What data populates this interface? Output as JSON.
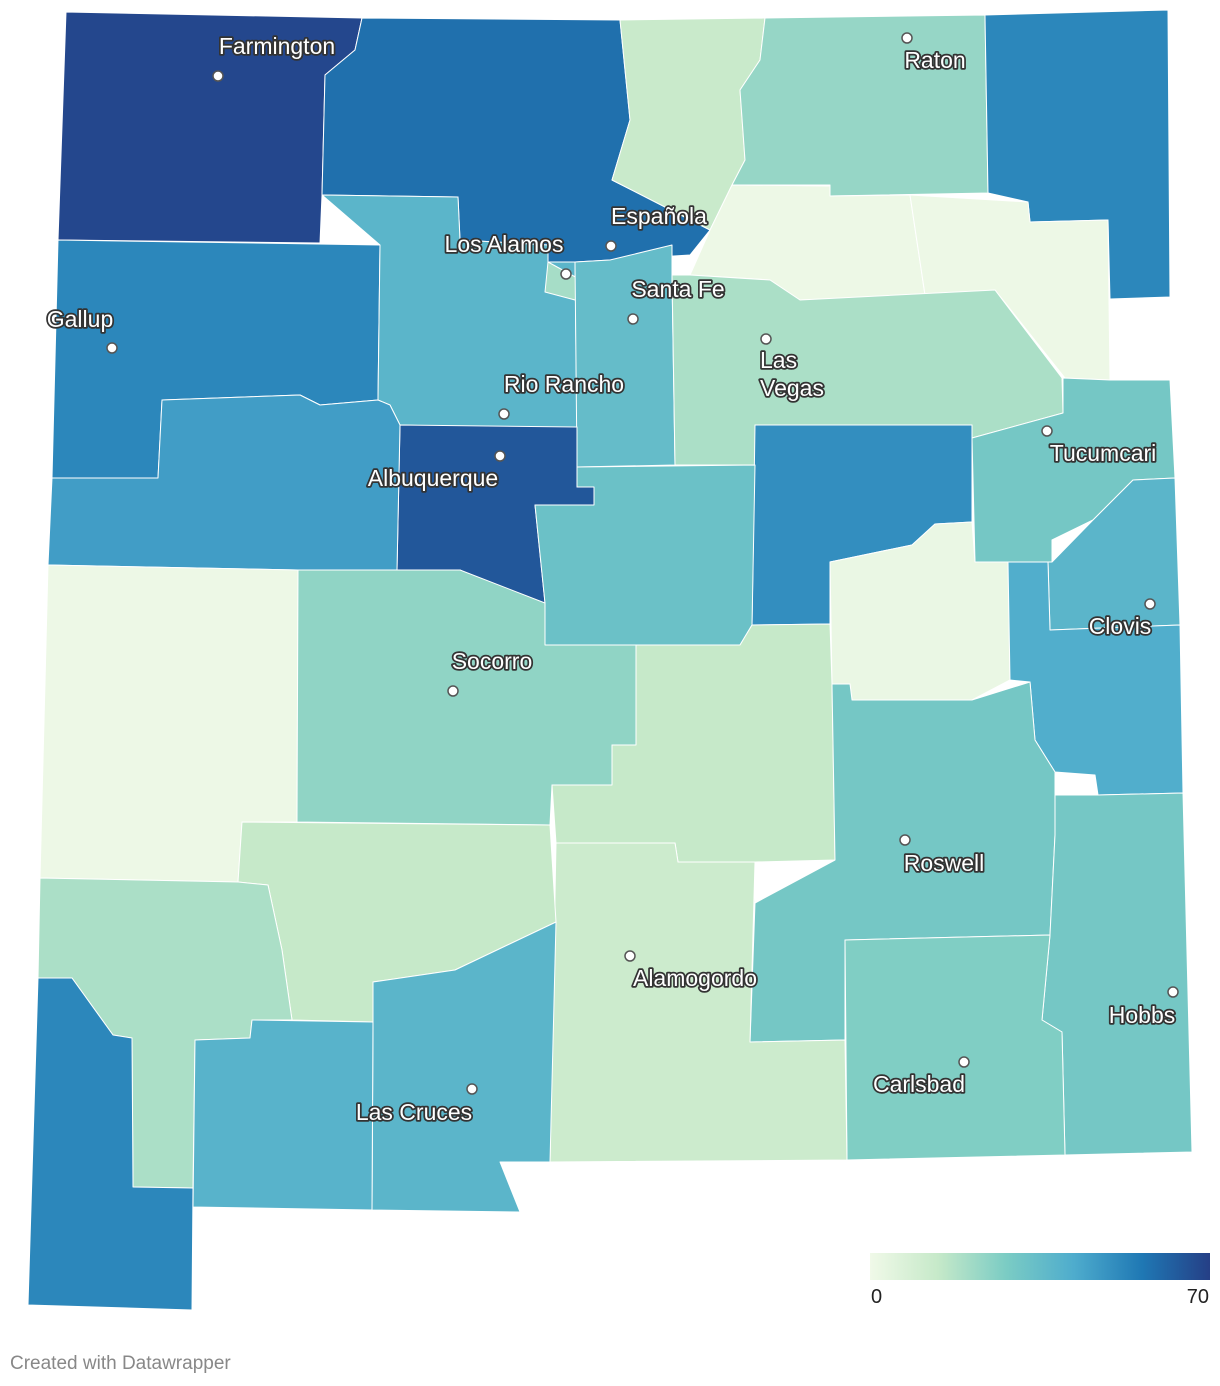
{
  "map": {
    "values": [
      68,
      58,
      13,
      23,
      52,
      1,
      1,
      52,
      38,
      20,
      35,
      19,
      30,
      50,
      2,
      38,
      41,
      64,
      46,
      33,
      1,
      24,
      14,
      30,
      30,
      27,
      12,
      14,
      19,
      38,
      39,
      52
    ],
    "scale": {
      "ticks": [
        0,
        70
      ],
      "colors": [
        "#f0f9e8",
        "#c6e9c9",
        "#7bccc4",
        "#4eaccd",
        "#1f78b4",
        "#253f86"
      ]
    },
    "cities": [
      "Farmington",
      "Raton",
      "Española",
      "Los Alamos",
      "Santa Fe",
      "Gallup",
      "Las Vegas",
      "Rio Rancho",
      "Tucumcari",
      "Albuquerque",
      "Clovis",
      "Socorro",
      "Roswell",
      "Alamogordo",
      "Hobbs",
      "Carlsbad",
      "Las Cruces"
    ],
    "credit": "Created with Datawrapper"
  }
}
